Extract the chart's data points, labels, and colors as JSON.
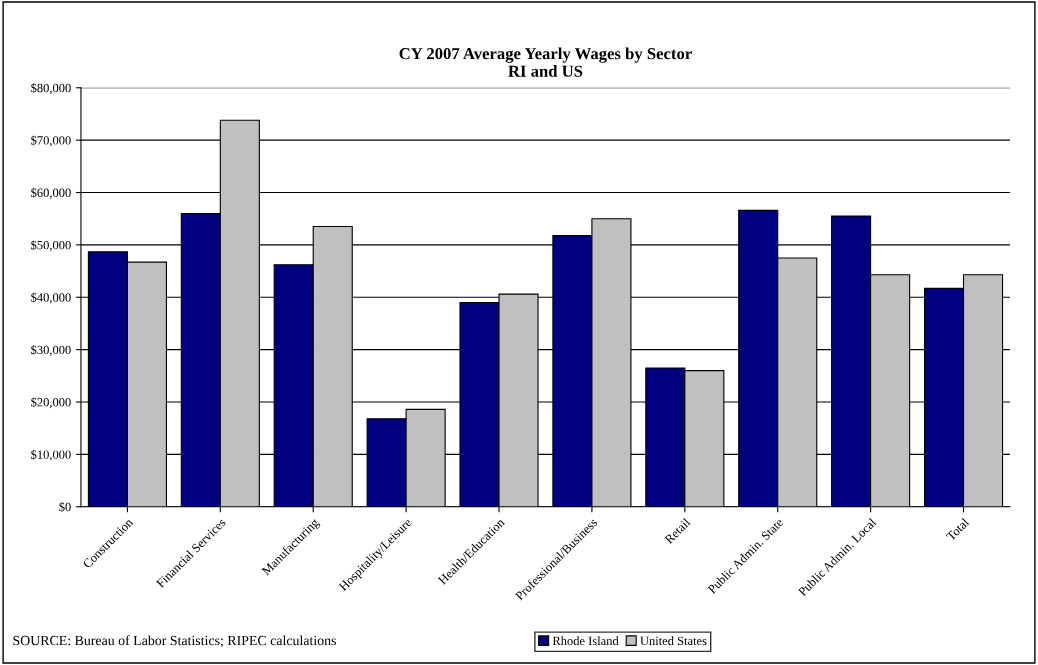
{
  "chart_data": {
    "type": "bar",
    "title": "CY 2007 Average Yearly Wages by Sector\nRI and US",
    "categories": [
      "Construction",
      "Financial Services",
      "Manufacturing",
      "Hospitality/Leisure",
      "Health/Education",
      "Professional/Business",
      "Retail",
      "Public Admin. State",
      "Public Admin. Local",
      "Total"
    ],
    "series": [
      {
        "name": "Rhode Island",
        "color": "#000080",
        "values": [
          48700,
          56000,
          46200,
          16800,
          39000,
          51800,
          26500,
          56600,
          55500,
          41700
        ]
      },
      {
        "name": "United States",
        "color": "#c0c0c0",
        "values": [
          46700,
          73800,
          53500,
          18600,
          40600,
          55000,
          26000,
          47500,
          44300,
          44300
        ]
      }
    ],
    "ylim": [
      0,
      80000
    ],
    "yticks": [
      {
        "value": 0,
        "label": "$0"
      },
      {
        "value": 10000,
        "label": "$10,000"
      },
      {
        "value": 20000,
        "label": "$20,000"
      },
      {
        "value": 30000,
        "label": "$30,000"
      },
      {
        "value": 40000,
        "label": "$40,000"
      },
      {
        "value": 50000,
        "label": "$50,000"
      },
      {
        "value": 60000,
        "label": "$60,000"
      },
      {
        "value": 70000,
        "label": "$70,000"
      },
      {
        "value": 80000,
        "label": "$80,000"
      }
    ],
    "grid": "y",
    "legend": "bottom",
    "annotations": [
      "SOURCE: Bureau of Labor Statistics; RIPEC calculations"
    ]
  }
}
